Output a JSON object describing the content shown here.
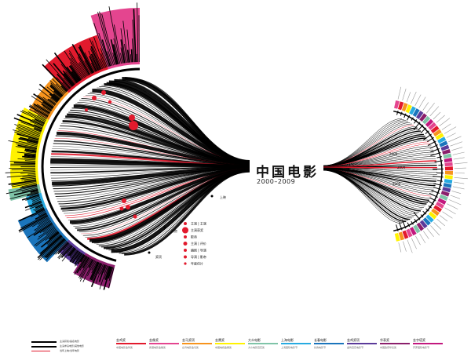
{
  "title": "中国电影",
  "subtitle": "2000–2009",
  "colors": {
    "accent_red": "#e21a2d",
    "magenta": "#e4458f",
    "orange": "#f7941d",
    "yellow": "#fff200",
    "teal": "#7fc4a8",
    "cyan": "#27aae1",
    "blue": "#1b75bc",
    "purple": "#5b3a9a",
    "violet": "#8b1f6c"
  },
  "left_labels": [
    {
      "text": "上映"
    },
    {
      "text": "票房"
    },
    {
      "text": "奖项"
    }
  ],
  "red_legend": [
    {
      "text": "主演 | 主演"
    },
    {
      "text": "主演获奖"
    },
    {
      "text": "影帝"
    },
    {
      "text": "主演 | 评价"
    },
    {
      "text": "编剧 | 导演"
    },
    {
      "text": "导演 | 影帝"
    },
    {
      "text": "年度佳片"
    }
  ],
  "key_rows": [
    {
      "text": "主演获奖/提名电影"
    },
    {
      "text": "主演参演电影/其他电影"
    },
    {
      "text": "当年上映/当年电影"
    }
  ],
  "legend": [
    {
      "label": "金鸡奖",
      "color": "#e21a2d",
      "desc": "中国电影金鸡奖"
    },
    {
      "label": "金像奖",
      "color": "#e4458f",
      "desc": "香港电影金像奖"
    },
    {
      "label": "金马奖项",
      "color": "#f7941d",
      "desc": "台湾电影金马奖"
    },
    {
      "label": "金鹰奖",
      "color": "#fff200",
      "desc": "中国电视金鹰奖"
    },
    {
      "label": "大众电影",
      "color": "#7fc4a8",
      "desc": "大众电影百花奖"
    },
    {
      "label": "上海电影",
      "color": "#27aae1",
      "desc": "上海国际电影节"
    },
    {
      "label": "长春电影",
      "color": "#1b75bc",
      "desc": "长春电影节"
    },
    {
      "label": "金鸡奖项",
      "color": "#5b3a9a",
      "desc": "金鸡百花电影节"
    },
    {
      "label": "华表奖",
      "color": "#8b1f6c",
      "desc": "中国政府华表奖"
    },
    {
      "label": "金字塔奖",
      "color": "#c2187e",
      "desc": "开罗国际电影节"
    }
  ],
  "year_marks": [
    {
      "text": "2009"
    },
    {
      "text": "2004"
    },
    {
      "text": "2002"
    }
  ]
}
